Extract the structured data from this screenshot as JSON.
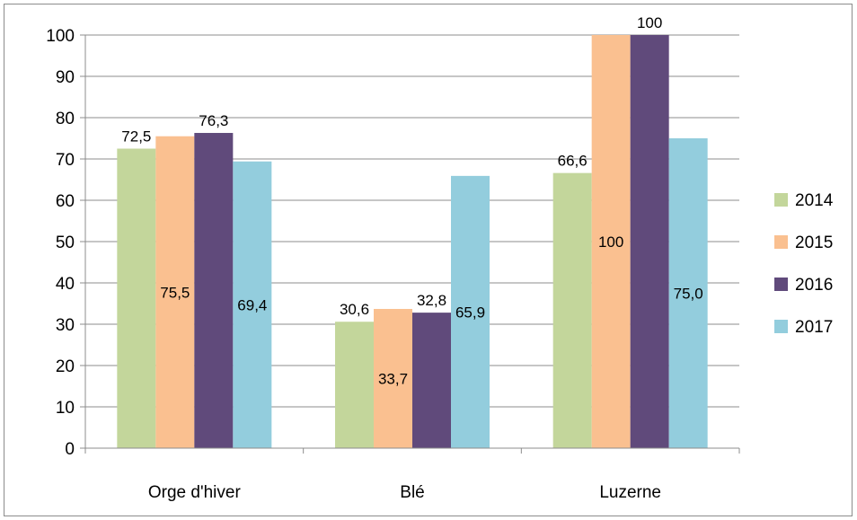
{
  "chart_data": {
    "type": "bar",
    "categories": [
      "Orge d'hiver",
      "Blé",
      "Luzerne"
    ],
    "series": [
      {
        "name": "2014",
        "values": [
          72.5,
          30.6,
          66.6
        ],
        "labels": [
          "72,5",
          "30,6",
          "66,6"
        ],
        "label_pos": [
          "above",
          "above",
          "above"
        ],
        "color": "#c3d69b"
      },
      {
        "name": "2015",
        "values": [
          75.5,
          33.7,
          100
        ],
        "labels": [
          "75,5",
          "33,7",
          "100"
        ],
        "label_pos": [
          "inside",
          "inside",
          "inside"
        ],
        "color": "#fac090"
      },
      {
        "name": "2016",
        "values": [
          76.3,
          32.8,
          100
        ],
        "labels": [
          "76,3",
          "32,8",
          "100"
        ],
        "label_pos": [
          "above",
          "above",
          "above"
        ],
        "color": "#604a7b"
      },
      {
        "name": "2017",
        "values": [
          69.4,
          65.9,
          75.0
        ],
        "labels": [
          "69,4",
          "65,9",
          "75,0"
        ],
        "label_pos": [
          "inside",
          "inside",
          "inside"
        ],
        "color": "#93cddd"
      }
    ],
    "yticks": [
      0,
      10,
      20,
      30,
      40,
      50,
      60,
      70,
      80,
      90,
      100
    ],
    "ylim": [
      0,
      100
    ],
    "grid": true,
    "legend": "right",
    "title": "",
    "xlabel": "",
    "ylabel": ""
  }
}
